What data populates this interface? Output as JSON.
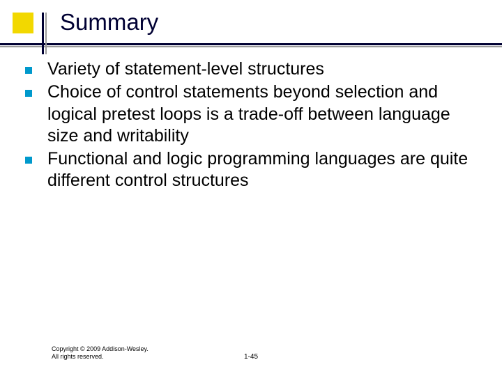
{
  "title": "Summary",
  "bullets": [
    "Variety of statement-level structures",
    "Choice of control statements beyond selection and logical pretest loops is a  trade-off between language size and writability",
    "Functional and logic programming languages are quite different control structures"
  ],
  "footer": {
    "copyright": "Copyright © 2009 Addison-Wesley. All rights reserved.",
    "page": "1-45"
  },
  "colors": {
    "title_color": "#000033",
    "bullet_marker": "#0099cc",
    "yellow_accent": "#f2d800",
    "line_dark": "#000033",
    "line_gray": "#9a9a9a",
    "background": "#ffffff"
  },
  "typography": {
    "title_fontsize": 33,
    "body_fontsize": 25,
    "footer_fontsize": 9
  }
}
